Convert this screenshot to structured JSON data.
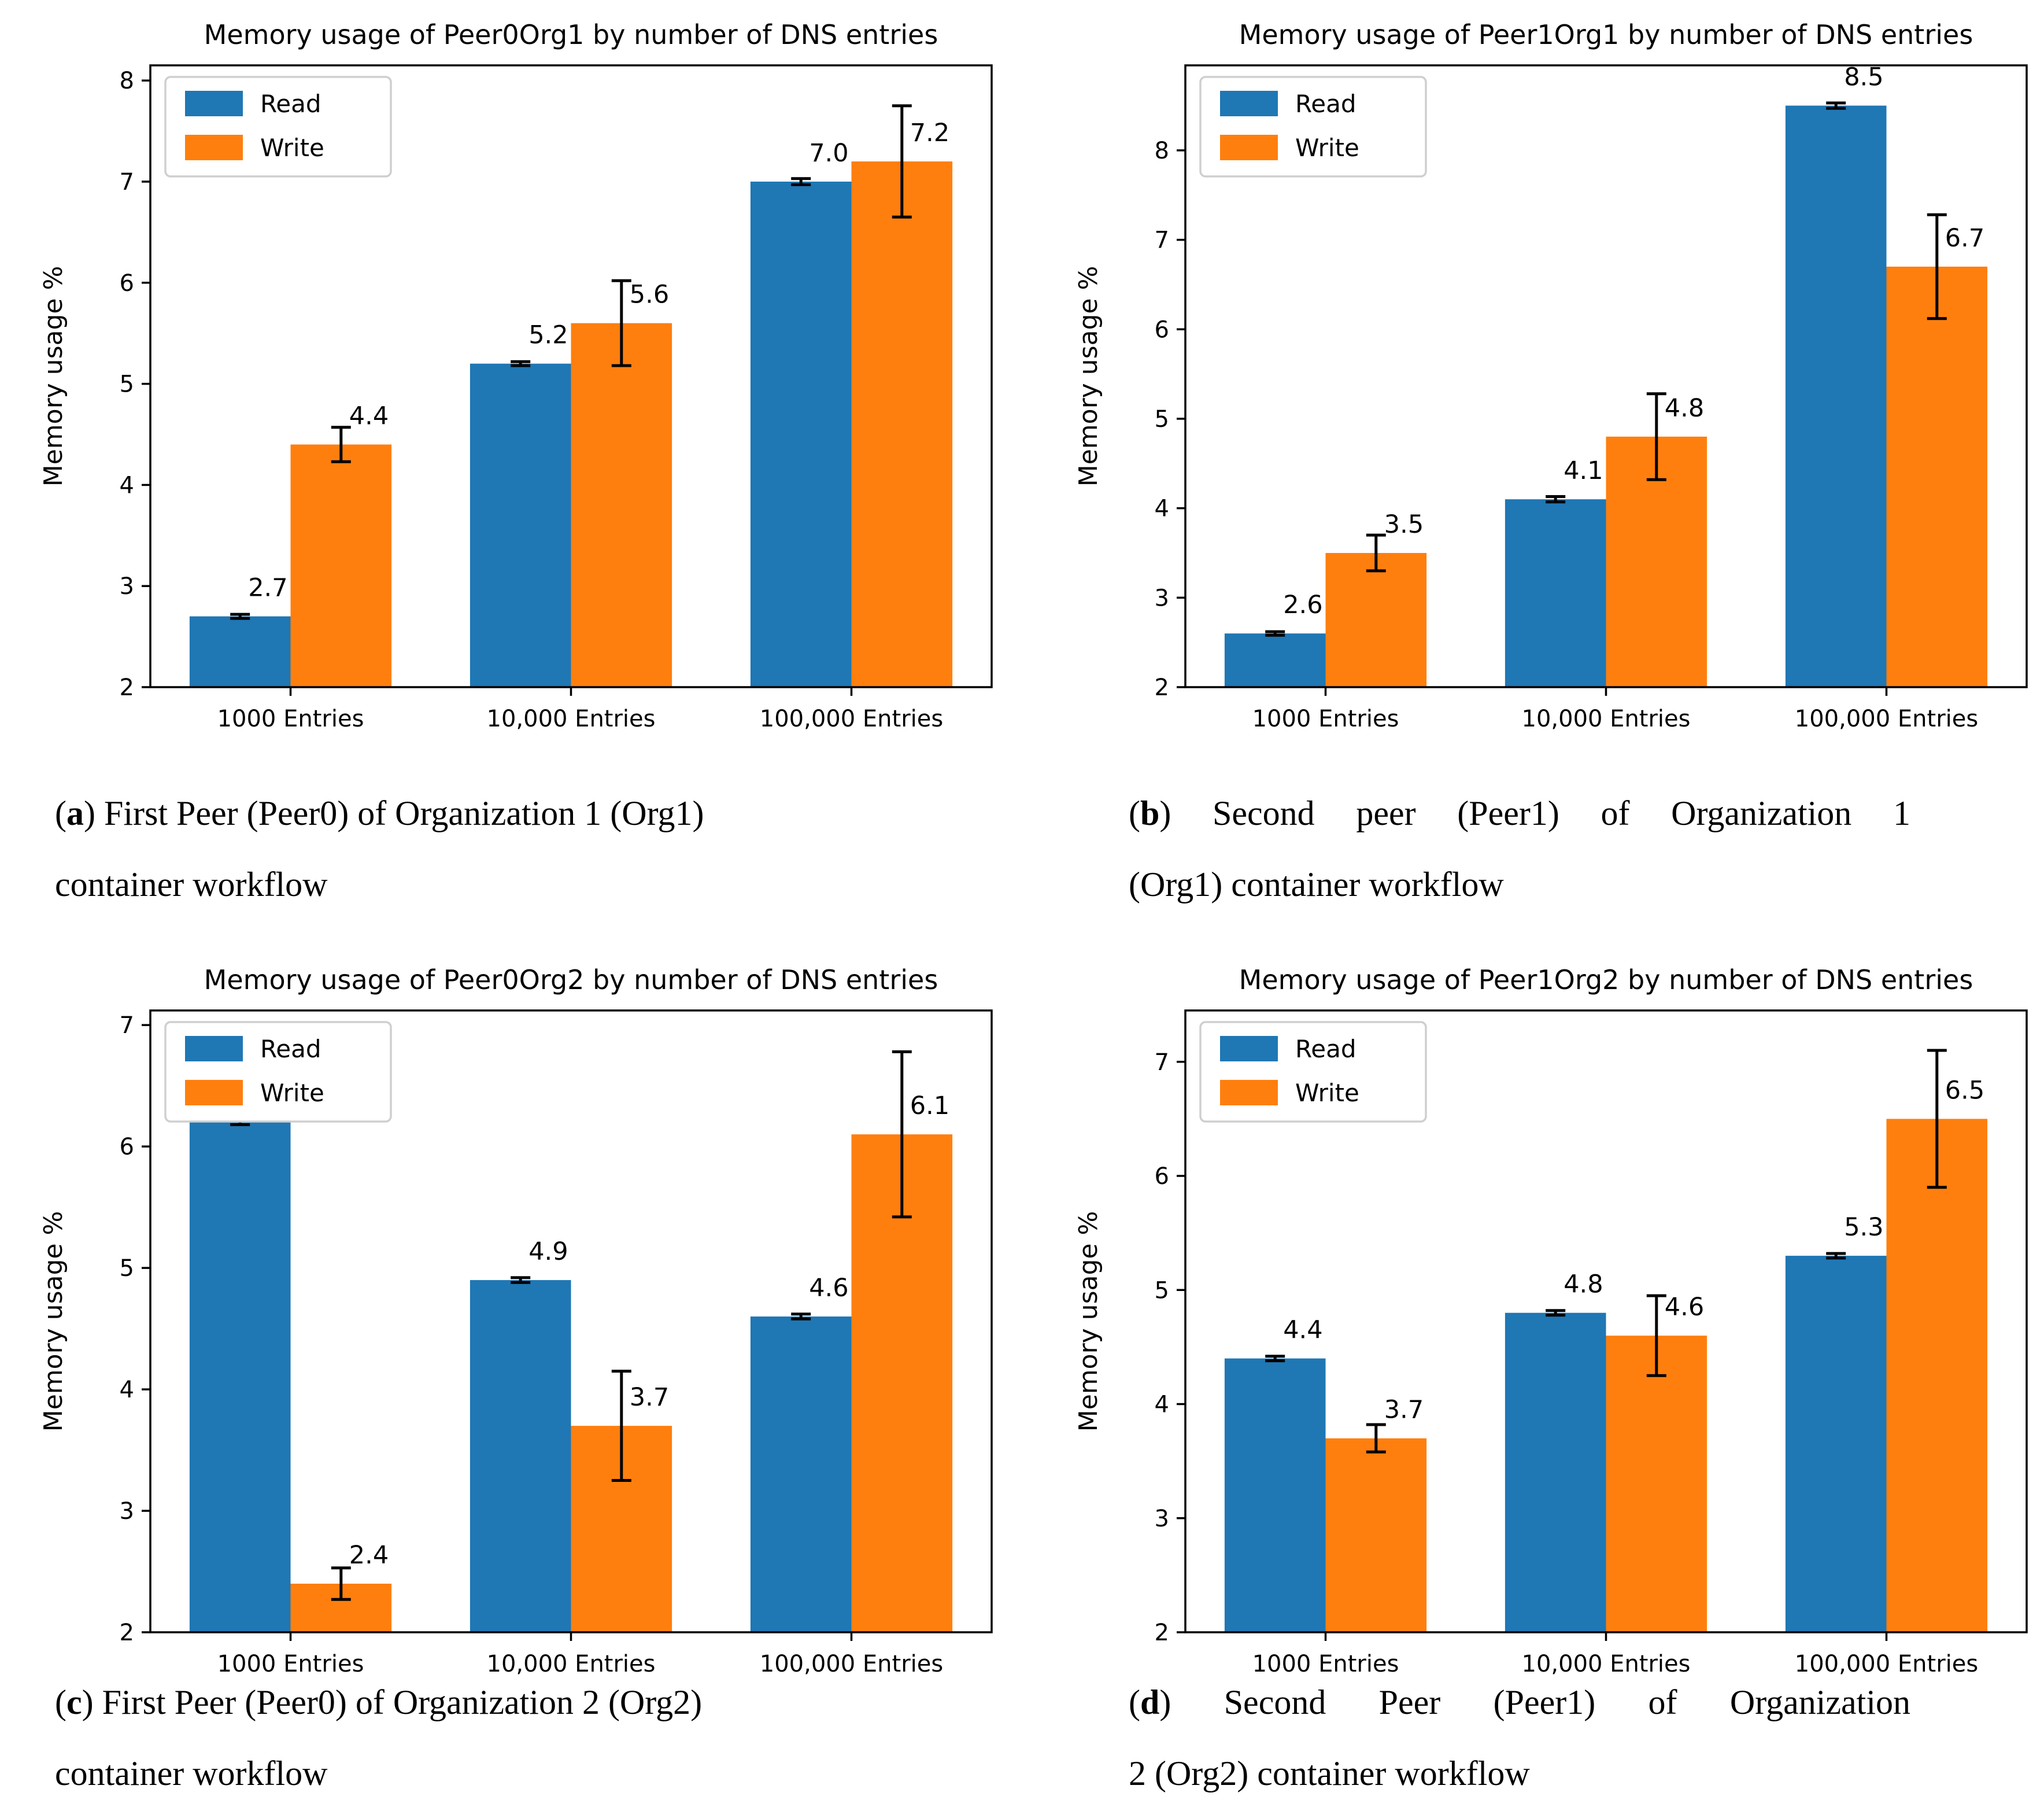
{
  "legend": {
    "read_label": "Read",
    "write_label": "Write",
    "read_color": "#1f77b4",
    "write_color": "#ff7f0e",
    "border_color": "#cfcfcf",
    "background": "#ffffff"
  },
  "axis": {
    "spine_color": "#000000",
    "error_bar_color": "#000000"
  },
  "chart_data": [
    {
      "id": "a",
      "type": "bar",
      "title": "Memory usage of Peer0Org1 by number of DNS entries",
      "xlabel": "",
      "ylabel": "Memory usage %",
      "categories": [
        "1000 Entries",
        "10,000 Entries",
        "100,000 Entries"
      ],
      "ylim": [
        2,
        8.15
      ],
      "yticks": [
        2,
        3,
        4,
        5,
        6,
        7,
        8
      ],
      "grid": false,
      "legend_position": "upper-left",
      "series": [
        {
          "name": "Read",
          "color": "#1f77b4",
          "values": [
            2.7,
            5.2,
            7.0
          ],
          "errors": [
            0.02,
            0.02,
            0.03
          ]
        },
        {
          "name": "Write",
          "color": "#ff7f0e",
          "values": [
            4.4,
            5.6,
            7.2
          ],
          "errors": [
            0.17,
            0.42,
            0.55
          ]
        }
      ]
    },
    {
      "id": "b",
      "type": "bar",
      "title": "Memory usage of Peer1Org1 by number of DNS entries",
      "xlabel": "",
      "ylabel": "Memory usage %",
      "categories": [
        "1000 Entries",
        "10,000 Entries",
        "100,000 Entries"
      ],
      "ylim": [
        2,
        8.95
      ],
      "yticks": [
        2,
        3,
        4,
        5,
        6,
        7,
        8
      ],
      "grid": false,
      "legend_position": "upper-left",
      "series": [
        {
          "name": "Read",
          "color": "#1f77b4",
          "values": [
            2.6,
            4.1,
            8.5
          ],
          "errors": [
            0.02,
            0.03,
            0.03
          ]
        },
        {
          "name": "Write",
          "color": "#ff7f0e",
          "values": [
            3.5,
            4.8,
            6.7
          ],
          "errors": [
            0.2,
            0.48,
            0.58
          ]
        }
      ]
    },
    {
      "id": "c",
      "type": "bar",
      "title": "Memory usage of Peer0Org2 by number of DNS entries",
      "xlabel": "",
      "ylabel": "Memory usage %",
      "categories": [
        "1000 Entries",
        "10,000 Entries",
        "100,000 Entries"
      ],
      "ylim": [
        2,
        7.12
      ],
      "yticks": [
        2,
        3,
        4,
        5,
        6,
        7
      ],
      "grid": false,
      "legend_position": "upper-left",
      "series": [
        {
          "name": "Read",
          "color": "#1f77b4",
          "values": [
            6.2,
            4.9,
            4.6
          ],
          "errors": [
            0.02,
            0.02,
            0.02
          ]
        },
        {
          "name": "Write",
          "color": "#ff7f0e",
          "values": [
            2.4,
            3.7,
            6.1
          ],
          "errors": [
            0.13,
            0.45,
            0.68
          ]
        }
      ]
    },
    {
      "id": "d",
      "type": "bar",
      "title": "Memory usage of Peer1Org2 by number of DNS entries",
      "xlabel": "",
      "ylabel": "Memory usage %",
      "categories": [
        "1000 Entries",
        "10,000 Entries",
        "100,000 Entries"
      ],
      "ylim": [
        2,
        7.45
      ],
      "yticks": [
        2,
        3,
        4,
        5,
        6,
        7
      ],
      "grid": false,
      "legend_position": "upper-left",
      "series": [
        {
          "name": "Read",
          "color": "#1f77b4",
          "values": [
            4.4,
            4.8,
            5.3
          ],
          "errors": [
            0.02,
            0.02,
            0.02
          ]
        },
        {
          "name": "Write",
          "color": "#ff7f0e",
          "values": [
            3.7,
            4.6,
            6.5
          ],
          "errors": [
            0.12,
            0.35,
            0.6
          ]
        }
      ]
    }
  ],
  "captions": {
    "a": {
      "po": "(",
      "letter": "a",
      "pc": ")",
      "line1": " First Peer (Peer0) of Organization 1 (Org1)",
      "line2": "container workflow"
    },
    "b": {
      "po": "(",
      "letter": "b",
      "pc": ")",
      "line1": " Second peer (Peer1) of Organization 1",
      "line2": "(Org1) container workflow"
    },
    "c": {
      "po": "(",
      "letter": "c",
      "pc": ")",
      "line1": " First Peer (Peer0) of Organization 2 (Org2)",
      "line2": "container workflow"
    },
    "d": {
      "po": "(",
      "letter": "d",
      "pc": ")",
      "line1": " Second Peer (Peer1) of Organization",
      "line2": "2 (Org2) container workflow"
    }
  }
}
